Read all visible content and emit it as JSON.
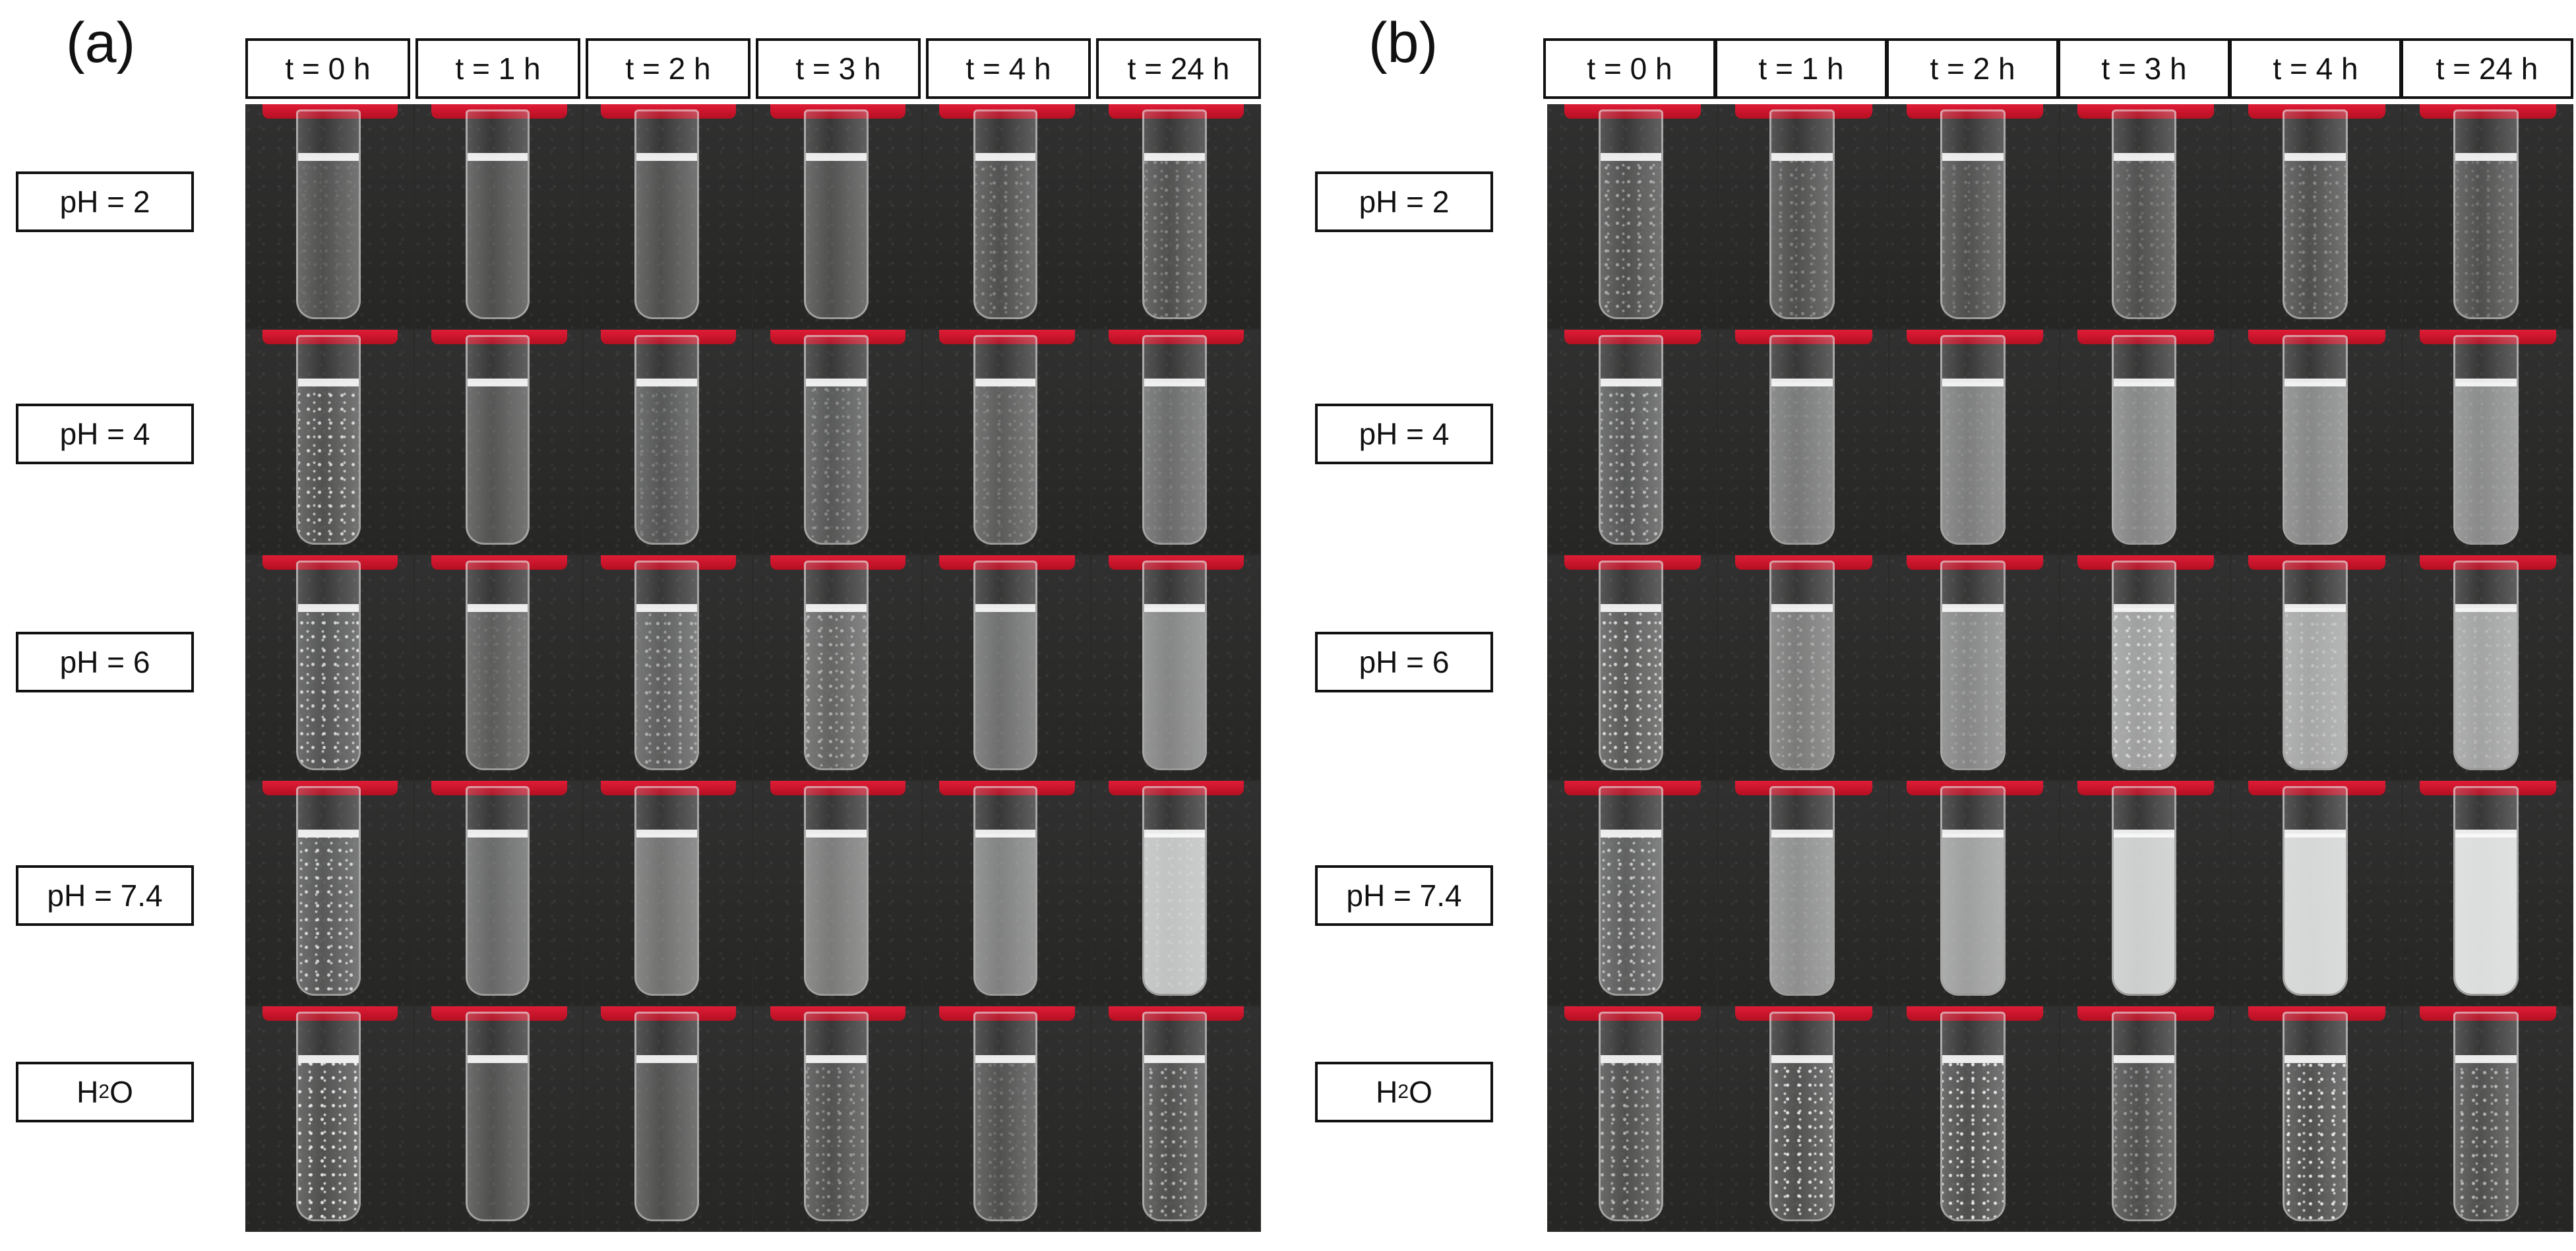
{
  "panels": [
    {
      "letter": "(a)",
      "time_labels": [
        "t = 0 h",
        "t = 1 h",
        "t = 2 h",
        "t = 3 h",
        "t = 4 h",
        "t = 24 h"
      ],
      "row_labels": [
        "pH = 2",
        "pH = 4",
        "pH = 6",
        "pH = 7.4",
        "H2O"
      ],
      "turbidity": [
        [
          0.05,
          0.05,
          0.05,
          0.05,
          0.05,
          0.05
        ],
        [
          0.06,
          0.07,
          0.08,
          0.1,
          0.12,
          0.22
        ],
        [
          0.08,
          0.12,
          0.14,
          0.18,
          0.24,
          0.38
        ],
        [
          0.1,
          0.2,
          0.26,
          0.32,
          0.36,
          0.78
        ],
        [
          0.05,
          0.05,
          0.05,
          0.05,
          0.05,
          0.05
        ]
      ],
      "bubbliness": [
        [
          0.1,
          0.0,
          0.0,
          0.0,
          0.3,
          0.3
        ],
        [
          0.8,
          0.0,
          0.2,
          0.3,
          0.2,
          0.1
        ],
        [
          0.8,
          0.1,
          0.5,
          0.5,
          0.0,
          0.0
        ],
        [
          0.8,
          0.0,
          0.0,
          0.0,
          0.0,
          0.2
        ],
        [
          0.9,
          0.0,
          0.0,
          0.4,
          0.2,
          0.6
        ]
      ]
    },
    {
      "letter": "(b)",
      "time_labels": [
        "t = 0 h",
        "t = 1 h",
        "t = 2 h",
        "t = 3 h",
        "t = 4 h",
        "t = 24 h"
      ],
      "row_labels": [
        "pH = 2",
        "pH = 4",
        "pH = 6",
        "pH = 7.4",
        "H2O"
      ],
      "turbidity": [
        [
          0.05,
          0.05,
          0.05,
          0.05,
          0.05,
          0.05
        ],
        [
          0.1,
          0.3,
          0.34,
          0.38,
          0.4,
          0.42
        ],
        [
          0.12,
          0.32,
          0.4,
          0.55,
          0.6,
          0.58
        ],
        [
          0.15,
          0.45,
          0.55,
          0.85,
          0.92,
          0.95
        ],
        [
          0.05,
          0.05,
          0.05,
          0.05,
          0.05,
          0.05
        ]
      ],
      "bubbliness": [
        [
          0.5,
          0.3,
          0.2,
          0.2,
          0.3,
          0.2
        ],
        [
          0.6,
          0.1,
          0.1,
          0.1,
          0.1,
          0.1
        ],
        [
          0.8,
          0.3,
          0.2,
          0.6,
          0.3,
          0.2
        ],
        [
          0.7,
          0.1,
          0.0,
          0.0,
          0.0,
          0.0
        ],
        [
          0.6,
          0.9,
          0.9,
          0.4,
          0.9,
          0.6
        ]
      ]
    }
  ]
}
